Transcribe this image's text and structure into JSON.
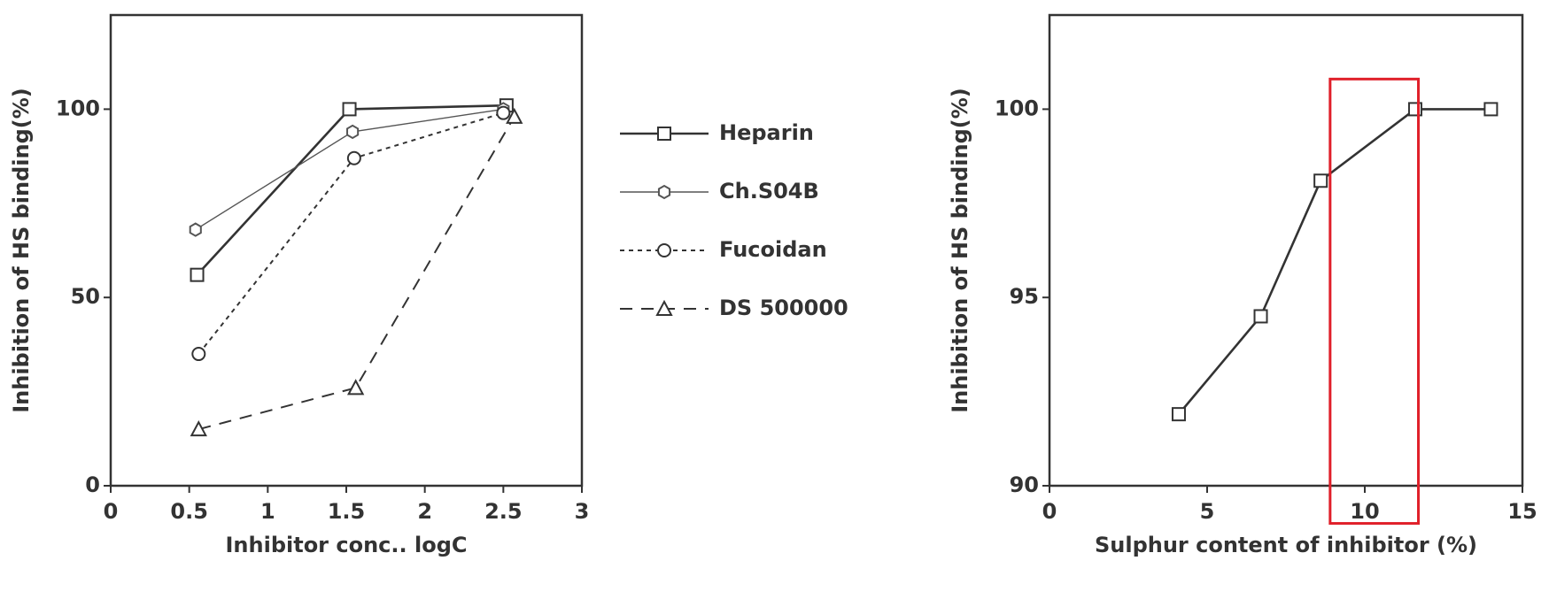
{
  "chart_data": [
    {
      "type": "line",
      "x_label": "Inhibitor conc.. logC",
      "y_label": "Inhibition of HS binding(%)",
      "xlim": [
        0,
        3
      ],
      "ylim": [
        0,
        125
      ],
      "xticks": [
        0,
        0.5,
        1,
        1.5,
        2,
        2.5,
        3
      ],
      "yticks": [
        0,
        50,
        100
      ],
      "legend": "right",
      "series": [
        {
          "name": "Heparin",
          "color": "#333333",
          "line_style": "solid",
          "marker": "square",
          "x": [
            0.55,
            1.52,
            2.52
          ],
          "values": [
            56,
            100,
            101
          ]
        },
        {
          "name": "Ch.S04B",
          "color": "#555555",
          "line_style": "thin",
          "marker": "hexagon",
          "x": [
            0.54,
            1.54,
            2.5
          ],
          "values": [
            68,
            94,
            100
          ]
        },
        {
          "name": "Fucoidan",
          "color": "#333333",
          "line_style": "dotted",
          "marker": "circle",
          "x": [
            0.56,
            1.55,
            2.5
          ],
          "values": [
            35,
            87,
            99
          ]
        },
        {
          "name": "DS 500000",
          "color": "#333333",
          "line_style": "dashed",
          "marker": "triangle",
          "x": [
            0.56,
            1.56,
            2.57
          ],
          "values": [
            15,
            26,
            98
          ]
        }
      ]
    },
    {
      "type": "line",
      "x_label": "Sulphur content of inhibitor (%)",
      "y_label": "Inhibition of HS binding(%)",
      "xlim": [
        0,
        15
      ],
      "ylim": [
        90,
        102.5
      ],
      "xticks": [
        0,
        5,
        10,
        15
      ],
      "yticks": [
        90,
        95,
        100
      ],
      "highlight": {
        "xlim": [
          8.9,
          11.7
        ],
        "ylim": [
          89,
          100.8
        ],
        "color": "#e0202a"
      },
      "series": [
        {
          "color": "#333333",
          "line_style": "solid",
          "marker": "square",
          "x": [
            4.1,
            6.7,
            8.6,
            11.6,
            14
          ],
          "values": [
            91.9,
            94.5,
            98.1,
            100,
            100
          ]
        }
      ]
    }
  ]
}
